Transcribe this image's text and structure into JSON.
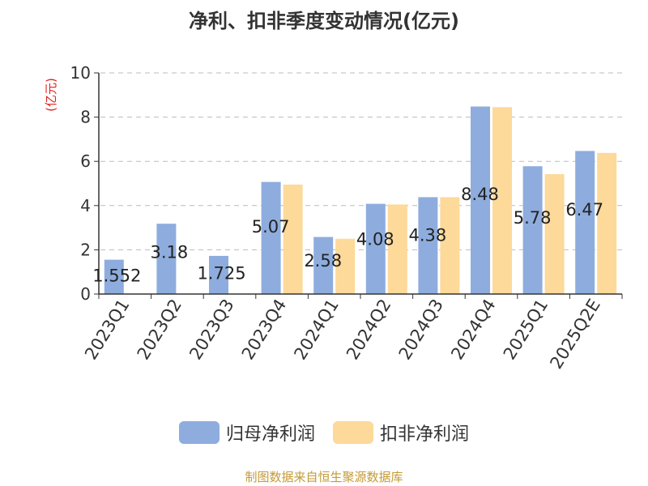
{
  "chart_data": {
    "type": "bar",
    "title": "净利、扣非季度变动情况(亿元)",
    "ylabel": "(亿元)",
    "xlabel": "",
    "ylim": [
      0,
      10
    ],
    "yticks": [
      "0",
      "2",
      "4",
      "6",
      "8",
      "10"
    ],
    "grid": true,
    "legend_position": "bottom",
    "categories": [
      "2023Q1",
      "2023Q2",
      "2023Q3",
      "2023Q4",
      "2024Q1",
      "2024Q2",
      "2024Q3",
      "2024Q4",
      "2025Q1",
      "2025Q2E"
    ],
    "series": [
      {
        "name": "归母净利润",
        "color": "#8eadde",
        "values": [
          1.552,
          3.18,
          1.725,
          5.07,
          2.58,
          4.08,
          4.38,
          8.48,
          5.78,
          6.47
        ]
      },
      {
        "name": "扣非净利润",
        "color": "#fdd99a",
        "values": [
          null,
          null,
          null,
          4.95,
          2.5,
          4.05,
          4.38,
          8.45,
          5.42,
          6.38
        ]
      }
    ],
    "data_labels": [
      "1.552",
      "3.18",
      "1.725",
      "5.07",
      "2.58",
      "4.08",
      "4.38",
      "8.48",
      "5.78",
      "6.47"
    ]
  },
  "footer": {
    "source": "制图数据来自恒生聚源数据库",
    "source_color": "#c49a35"
  },
  "colors": {
    "ylabel": "#e0201a",
    "axis": "#333333",
    "grid": "#bbbbbb"
  }
}
